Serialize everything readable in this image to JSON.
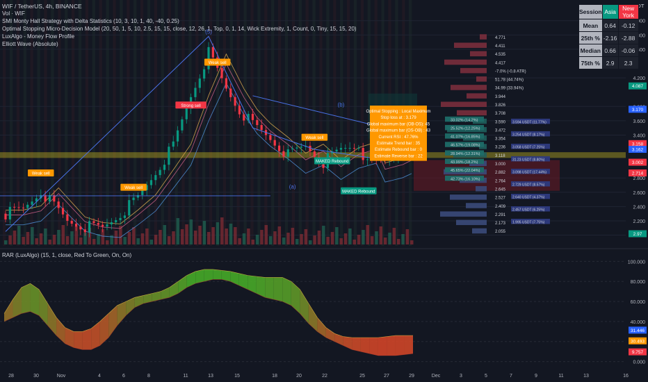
{
  "header": {
    "symbol_line": "WIF / TetherUS, 4h, BINANCE",
    "indicators": [
      "Vol · WIF",
      "SMI Monty Hall Strategy with Delta Statistics (10, 3, 10, 1, 40, -40, 0.25)",
      "Optimal Stopping Micro-Decision Model (20, 50, 1, 5, 10, 2.5, 15, 15, close, 12, 26, 1, Top, 0, 1, 14, Wick Extremity, 1, Count, 0, Tiny, 15, 15, 20)",
      "LuxAlgo - Money Flow Profile",
      "Elliott Wave (Absolute)"
    ],
    "currency": "USDT"
  },
  "stats_table": {
    "headers": [
      "Session",
      "Asia",
      "New York"
    ],
    "rows": [
      {
        "label": "Mean",
        "asia": "0.64",
        "ny": "-0.12"
      },
      {
        "label": "25th %",
        "asia": "-2.16",
        "ny": "-2.88"
      },
      {
        "label": "Median",
        "asia": "0.66",
        "ny": "-0.06"
      },
      {
        "label": "75th %",
        "asia": "2.9",
        "ny": "2.3"
      }
    ]
  },
  "chart_data": [
    {
      "type": "candlestick",
      "title": "WIF / TetherUS, 4h, BINANCE",
      "y_axis": {
        "ticks": [
          "5.000",
          "4.800",
          "4.600",
          "4.200",
          "3.800",
          "3.600",
          "3.400",
          "2.800",
          "2.600",
          "2.400",
          "2.200",
          "2.000"
        ],
        "ylim": [
          1.85,
          5.25
        ]
      },
      "x_axis": {
        "ticks": [
          "28",
          "30",
          "Nov",
          "4",
          "6",
          "8",
          "11",
          "13",
          "15",
          "18",
          "20",
          "22",
          "25",
          "27",
          "29",
          "Dec",
          "3",
          "5",
          "7",
          "9",
          "11",
          "13",
          "16"
        ]
      },
      "price_path": [
        [
          0,
          2.3
        ],
        [
          4,
          2.36
        ],
        [
          8,
          2.62
        ],
        [
          10,
          2.48
        ],
        [
          14,
          2.2
        ],
        [
          18,
          2.12
        ],
        [
          22,
          2.1
        ],
        [
          26,
          2.3
        ],
        [
          30,
          2.52
        ],
        [
          34,
          2.88
        ],
        [
          38,
          3.25
        ],
        [
          42,
          3.95
        ],
        [
          46,
          4.55
        ],
        [
          48,
          4.3
        ],
        [
          50,
          4.05
        ],
        [
          53,
          3.75
        ],
        [
          56,
          3.55
        ],
        [
          60,
          3.35
        ],
        [
          64,
          3.12
        ],
        [
          68,
          3.25
        ],
        [
          72,
          3.02
        ],
        [
          76,
          3.2
        ],
        [
          80,
          3.28
        ],
        [
          82,
          2.98
        ],
        [
          86,
          3.05
        ],
        [
          90,
          3.18
        ],
        [
          92,
          3.19
        ]
      ],
      "price_labels": [
        "4.771",
        "4.411",
        "4.535",
        "4.417",
        "-7.0% (-0.8 ATR)",
        "51.78 (44.74%)",
        "34.99 (33.94%)",
        "3.944",
        "3.826",
        "3.708",
        "3.590",
        "3.472",
        "3.354",
        "3.236",
        "3.118",
        "3.000",
        "2.882",
        "2.764",
        "2.645",
        "2.527",
        "2.409",
        "2.291",
        "2.173",
        "2.055"
      ],
      "price_badges": [
        {
          "text": "4.087",
          "color": "#089981"
        },
        {
          "text": "3.170",
          "color": "#2962ff"
        },
        {
          "text": "3.158",
          "color": "#f23645"
        },
        {
          "text": "3.162",
          "color": "#2962ff"
        },
        {
          "text": "3.002",
          "color": "#f23645"
        },
        {
          "text": "2.714",
          "color": "#f23645"
        },
        {
          "text": "2.97",
          "color": "#089981"
        }
      ],
      "profile_labels": [
        "33.02% (14.2%)",
        "25.52% (12.25%)",
        "41.07% (16.85%)",
        "46.57% (19.08%)",
        "28.94% (12.31%)",
        "43.99% (18.2%)",
        "45.65% (22.04%)",
        "42.73% (16.10%)"
      ],
      "profile_tags": [
        "3.594 USDT (11.77%)",
        "3.254 USDT (8.17%)",
        "3.058 USDT (7.25%)",
        "31.23 USDT (8.80%)",
        "3.098 USDT (17.44%)",
        "2.729 USDT (8.57%)",
        "2.640 USDT (4.37%)",
        "2.457 USDT (6.25%)",
        "1.995 USDT (7.75%)"
      ],
      "annotations": [
        {
          "text": "Weak sell",
          "color": "#ff9800"
        },
        {
          "text": "Strong sell",
          "color": "#f23645"
        },
        {
          "text": "Weak sell",
          "color": "#ff9800"
        },
        {
          "text": "Weak sell",
          "color": "#ff9800"
        },
        {
          "text": "Weak sell",
          "color": "#ff9800"
        },
        {
          "text": "MAKED Rebound",
          "color": "#089981"
        },
        {
          "text": "MAKED Rebound",
          "color": "#089981"
        }
      ],
      "wave_labels": [
        "(5)",
        "(b)",
        "(a)"
      ],
      "info_box": [
        "Optimal Stopping : Local Maximum",
        "Stop loss at : 3.179",
        "Global maximum bar (OB-OS): 45",
        "Global maximum bar (OS-OB) : 43",
        "Current RSI : 47.76%",
        "Estimate Trend bar : 35",
        "Estimate Rebound bar : 0",
        "Estimate Reverse bar : 22"
      ]
    },
    {
      "type": "area",
      "title": "RAR (LuxAlgo) (15, 1, close, Red To Green, On, On)",
      "y_axis": {
        "ticks": [
          "100.000",
          "80.000",
          "60.000",
          "40.000",
          "20.000",
          "0.000"
        ],
        "ylim": [
          -3,
          103
        ]
      },
      "series": [
        {
          "name": "",
          "values": [
            48,
            62,
            74,
            78,
            72,
            58,
            44,
            34,
            30,
            30,
            33,
            40,
            48,
            56,
            60,
            64,
            66,
            68,
            70,
            74,
            80,
            86,
            90,
            92,
            92,
            91,
            90,
            88,
            86,
            85,
            84,
            84,
            84,
            80,
            72,
            58,
            44,
            34,
            28,
            25,
            24,
            24,
            24,
            24,
            25,
            26,
            26,
            26
          ]
        },
        {
          "name": "",
          "values": [
            40,
            44,
            48,
            50,
            46,
            36,
            26,
            18,
            14,
            12,
            12,
            16,
            24,
            36,
            46,
            54,
            58,
            60,
            62,
            64,
            68,
            74,
            78,
            80,
            82,
            82,
            80,
            76,
            72,
            68,
            64,
            62,
            60,
            56,
            48,
            38,
            30,
            24,
            20,
            16,
            12,
            10,
            8,
            6,
            6,
            6,
            7,
            8
          ]
        }
      ],
      "badges": [
        {
          "text": "31.446",
          "color": "#2962ff"
        },
        {
          "text": "30.493",
          "color": "#ff9800"
        },
        {
          "text": "9.757",
          "color": "#f23645"
        }
      ]
    }
  ]
}
